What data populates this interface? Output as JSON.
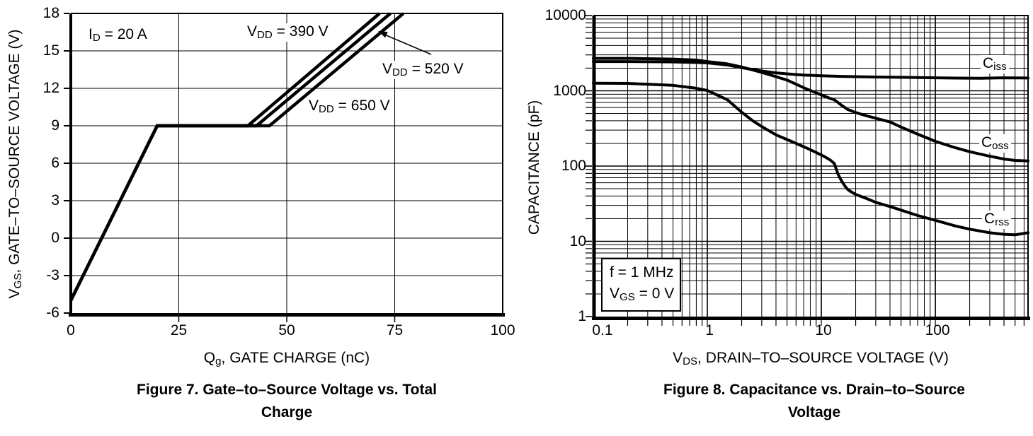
{
  "page": {
    "background": "#ffffff",
    "ink": "#000000"
  },
  "figure7": {
    "y_title": {
      "pre": "V",
      "sub": "GS",
      "post": ", GATE–TO–SOURCE VOLTAGE (V)"
    },
    "x_title": {
      "pre": "Q",
      "sub": "g",
      "post": ", GATE CHARGE (nC)"
    },
    "caption1": "Figure 7. Gate–to–Source Voltage vs. Total",
    "caption2": "Charge",
    "cond": {
      "pre": "I",
      "sub": "D",
      "post": " = 20 A"
    },
    "lbl390": {
      "pre": "V",
      "sub": "DD",
      "post": " = 390 V"
    },
    "lbl520": {
      "pre": "V",
      "sub": "DD",
      "post": " = 520 V"
    },
    "lbl650": {
      "pre": "V",
      "sub": "DD",
      "post": " = 650 V"
    },
    "xtick_labels": [
      "0",
      "25",
      "50",
      "75",
      "100"
    ],
    "ytick_labels": [
      "-6",
      "-3",
      "0",
      "3",
      "6",
      "9",
      "12",
      "15",
      "18"
    ]
  },
  "figure8": {
    "y_title": "CAPACITANCE (pF)",
    "x_title": {
      "pre": "V",
      "sub": "DS",
      "post": ", DRAIN–TO–SOURCE VOLTAGE (V)"
    },
    "caption1": "Figure 8. Capacitance vs. Drain–to–Source",
    "caption2": "Voltage",
    "cond1": "f = 1 MHz",
    "cond2": {
      "pre": "V",
      "sub": "GS",
      "post": " = 0 V"
    },
    "lbl_ciss": {
      "pre": "C",
      "sub": "iss"
    },
    "lbl_coss": {
      "pre": "C",
      "sub": "oss"
    },
    "lbl_crss": {
      "pre": "C",
      "sub": "rss"
    },
    "xtick_labels": [
      "0.1",
      "1",
      "10",
      "100"
    ],
    "ytick_labels": [
      "1",
      "10",
      "100",
      "1000",
      "10000"
    ]
  },
  "chart_data": [
    {
      "type": "line",
      "title": "Figure 7. Gate–to–Source Voltage vs. Total Charge",
      "xlabel": "Qg, GATE CHARGE (nC)",
      "ylabel": "VGS, GATE–TO–SOURCE VOLTAGE (V)",
      "xlim": [
        0,
        100
      ],
      "ylim": [
        -6,
        18
      ],
      "xticks": [
        0,
        25,
        50,
        75,
        100
      ],
      "yticks": [
        -6,
        -3,
        0,
        3,
        6,
        9,
        12,
        15,
        18
      ],
      "grid": true,
      "legend_position": "in-plot-labels",
      "annotations": [
        "ID = 20 A"
      ],
      "series": [
        {
          "name": "VDD = 390 V",
          "points": [
            [
              0,
              -5
            ],
            [
              20,
              9
            ],
            [
              41,
              9
            ],
            [
              71.5,
              18
            ]
          ]
        },
        {
          "name": "VDD = 520 V",
          "points": [
            [
              0,
              -5
            ],
            [
              20,
              9
            ],
            [
              43,
              9
            ],
            [
              74,
              18
            ]
          ]
        },
        {
          "name": "VDD = 650 V",
          "points": [
            [
              0,
              -5
            ],
            [
              20,
              9
            ],
            [
              46,
              9
            ],
            [
              77,
              18
            ]
          ]
        }
      ]
    },
    {
      "type": "line",
      "title": "Figure 8. Capacitance vs. Drain–to–Source Voltage",
      "xlabel": "VDS, DRAIN–TO–SOURCE VOLTAGE (V)",
      "ylabel": "CAPACITANCE (pF)",
      "xscale": "log",
      "yscale": "log",
      "xlim": [
        0.1,
        650
      ],
      "ylim": [
        1,
        10000
      ],
      "xticks": [
        0.1,
        1,
        10,
        100
      ],
      "yticks": [
        1,
        10,
        100,
        1000,
        10000
      ],
      "grid": true,
      "legend_position": "in-plot-labels",
      "annotations": [
        "f = 1 MHz",
        "VGS = 0 V"
      ],
      "series": [
        {
          "name": "Ciss",
          "points": [
            [
              0.1,
              2450
            ],
            [
              0.2,
              2445
            ],
            [
              0.5,
              2420
            ],
            [
              0.8,
              2380
            ],
            [
              1,
              2350
            ],
            [
              1.5,
              2200
            ],
            [
              2,
              2030
            ],
            [
              3,
              1830
            ],
            [
              4,
              1730
            ],
            [
              5,
              1680
            ],
            [
              7,
              1620
            ],
            [
              10,
              1580
            ],
            [
              15,
              1555
            ],
            [
              20,
              1540
            ],
            [
              30,
              1525
            ],
            [
              50,
              1510
            ],
            [
              100,
              1490
            ],
            [
              150,
              1475
            ],
            [
              250,
              1465
            ],
            [
              400,
              1490
            ],
            [
              650,
              1480
            ]
          ]
        },
        {
          "name": "Coss",
          "points": [
            [
              0.1,
              2700
            ],
            [
              0.2,
              2695
            ],
            [
              0.5,
              2640
            ],
            [
              0.8,
              2560
            ],
            [
              1,
              2450
            ],
            [
              1.5,
              2280
            ],
            [
              2,
              2070
            ],
            [
              3,
              1760
            ],
            [
              4,
              1540
            ],
            [
              5,
              1390
            ],
            [
              7,
              1100
            ],
            [
              10,
              880
            ],
            [
              12,
              790
            ],
            [
              13,
              760
            ],
            [
              15,
              645
            ],
            [
              17,
              565
            ],
            [
              20,
              515
            ],
            [
              25,
              465
            ],
            [
              30,
              432
            ],
            [
              40,
              385
            ],
            [
              50,
              330
            ],
            [
              70,
              265
            ],
            [
              100,
              213
            ],
            [
              150,
              175
            ],
            [
              200,
              155
            ],
            [
              300,
              135
            ],
            [
              400,
              124
            ],
            [
              500,
              119
            ],
            [
              650,
              117
            ]
          ]
        },
        {
          "name": "Crss",
          "points": [
            [
              0.1,
              1260
            ],
            [
              0.2,
              1255
            ],
            [
              0.5,
              1180
            ],
            [
              0.8,
              1080
            ],
            [
              1,
              1010
            ],
            [
              1.5,
              760
            ],
            [
              2,
              520
            ],
            [
              2.5,
              400
            ],
            [
              3,
              335
            ],
            [
              4,
              260
            ],
            [
              5,
              225
            ],
            [
              6,
              200
            ],
            [
              8,
              165
            ],
            [
              10,
              140
            ],
            [
              11,
              130
            ],
            [
              12,
              120
            ],
            [
              13,
              108
            ],
            [
              14,
              78
            ],
            [
              15,
              64
            ],
            [
              16,
              55
            ],
            [
              17,
              49
            ],
            [
              18,
              46
            ],
            [
              20,
              42
            ],
            [
              25,
              37
            ],
            [
              30,
              33
            ],
            [
              40,
              29
            ],
            [
              50,
              26
            ],
            [
              70,
              22
            ],
            [
              100,
              19
            ],
            [
              150,
              16
            ],
            [
              200,
              14.5
            ],
            [
              300,
              13
            ],
            [
              400,
              12.4
            ],
            [
              500,
              12.2
            ],
            [
              650,
              13
            ]
          ]
        }
      ]
    }
  ]
}
